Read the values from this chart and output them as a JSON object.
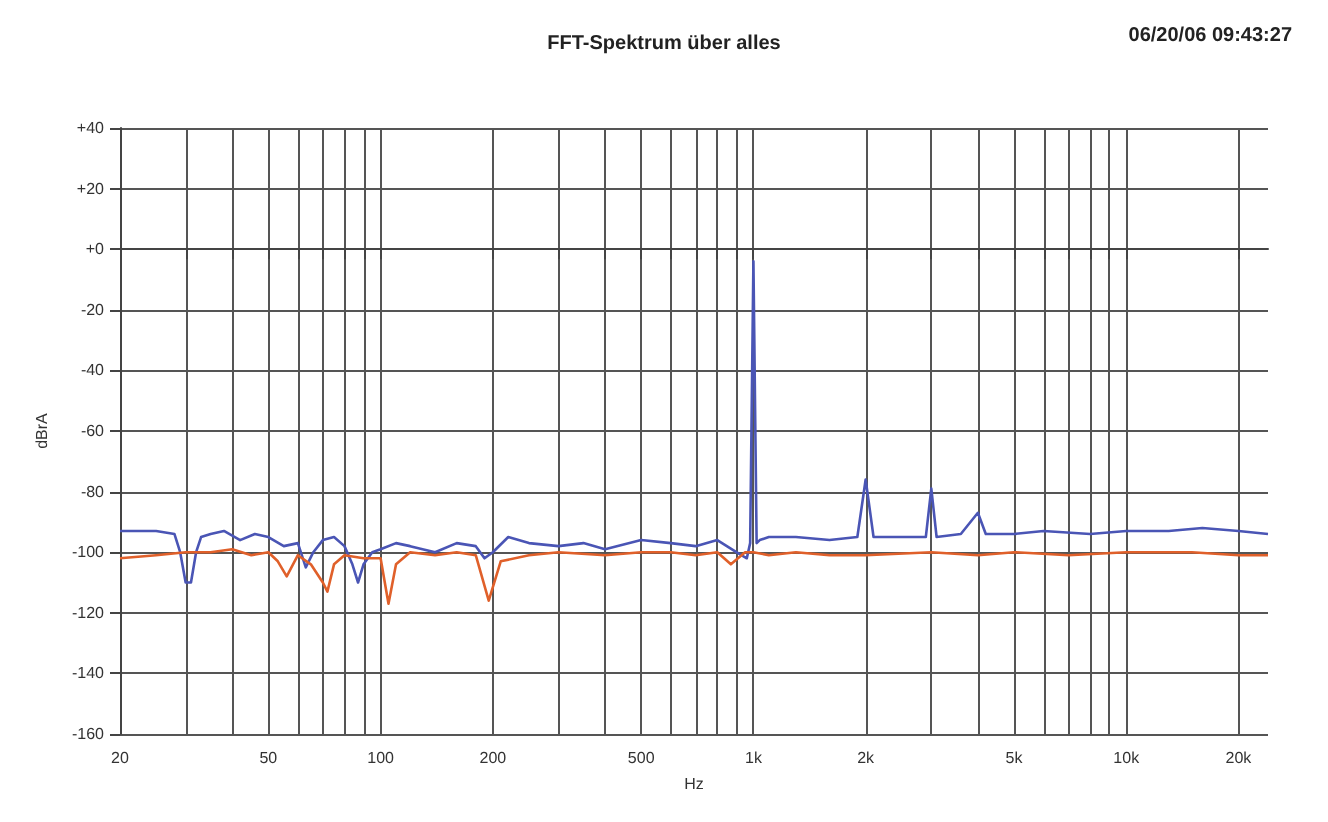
{
  "chart_data": {
    "type": "line",
    "title": "FFT-Spektrum über alles",
    "annotations": [
      "06/20/06 09:43:27"
    ],
    "xlabel": "Hz",
    "ylabel": "dBrA",
    "log": "x",
    "grid": true,
    "marker": "none",
    "line_style": "solid",
    "xlim": [
      20,
      24000
    ],
    "ylim": [
      -160,
      40
    ],
    "xticks": [
      {
        "value": 20,
        "label": "20"
      },
      {
        "value": 30,
        "label": null
      },
      {
        "value": 40,
        "label": null
      },
      {
        "value": 50,
        "label": "50"
      },
      {
        "value": 60,
        "label": null
      },
      {
        "value": 70,
        "label": null
      },
      {
        "value": 80,
        "label": null
      },
      {
        "value": 90,
        "label": null
      },
      {
        "value": 100,
        "label": "100"
      },
      {
        "value": 200,
        "label": "200"
      },
      {
        "value": 300,
        "label": null
      },
      {
        "value": 400,
        "label": null
      },
      {
        "value": 500,
        "label": "500"
      },
      {
        "value": 600,
        "label": null
      },
      {
        "value": 700,
        "label": null
      },
      {
        "value": 800,
        "label": null
      },
      {
        "value": 900,
        "label": null
      },
      {
        "value": 1000,
        "label": "1k"
      },
      {
        "value": 2000,
        "label": "2k"
      },
      {
        "value": 3000,
        "label": null
      },
      {
        "value": 4000,
        "label": null
      },
      {
        "value": 5000,
        "label": "5k"
      },
      {
        "value": 6000,
        "label": null
      },
      {
        "value": 7000,
        "label": null
      },
      {
        "value": 8000,
        "label": null
      },
      {
        "value": 9000,
        "label": null
      },
      {
        "value": 10000,
        "label": "10k"
      },
      {
        "value": 20000,
        "label": "20k"
      }
    ],
    "yticks": [
      {
        "value": 40,
        "label": "+40"
      },
      {
        "value": 20,
        "label": "+20"
      },
      {
        "value": 0,
        "label": "+0"
      },
      -20,
      -40,
      -60,
      -80,
      -100,
      -120,
      -140,
      -160
    ],
    "series": [
      {
        "color": "#4a55b5",
        "x": [
          20,
          22,
          25,
          28,
          29,
          30,
          31,
          32,
          33,
          35,
          38,
          42,
          46,
          50,
          55,
          60,
          63,
          66,
          70,
          75,
          80,
          84,
          87,
          90,
          95,
          100,
          110,
          120,
          140,
          160,
          180,
          190,
          200,
          220,
          250,
          300,
          350,
          400,
          500,
          600,
          700,
          800,
          900,
          960,
          980,
          1000,
          1020,
          1040,
          1100,
          1300,
          1600,
          1900,
          2000,
          2100,
          2500,
          2900,
          3000,
          3100,
          3600,
          4000,
          4200,
          5000,
          6000,
          8000,
          10000,
          13000,
          16000,
          20000,
          24000
        ],
        "values": [
          -93,
          -93,
          -93,
          -94,
          -100,
          -110,
          -110,
          -100,
          -95,
          -94,
          -93,
          -96,
          -94,
          -95,
          -98,
          -97,
          -105,
          -100,
          -96,
          -95,
          -98,
          -104,
          -110,
          -104,
          -100,
          -99,
          -97,
          -98,
          -100,
          -97,
          -98,
          -102,
          -100,
          -95,
          -97,
          -98,
          -97,
          -99,
          -96,
          -97,
          -98,
          -96,
          -100,
          -102,
          -97,
          -4,
          -97,
          -96,
          -95,
          -95,
          -96,
          -95,
          -76,
          -95,
          -95,
          -95,
          -79,
          -95,
          -94,
          -87,
          -94,
          -94,
          -93,
          -94,
          -93,
          -93,
          -92,
          -93,
          -94
        ]
      },
      {
        "color": "#e0602a",
        "x": [
          20,
          25,
          30,
          35,
          40,
          45,
          50,
          53,
          56,
          60,
          65,
          70,
          72,
          75,
          80,
          90,
          100,
          105,
          110,
          120,
          140,
          160,
          180,
          195,
          210,
          250,
          300,
          400,
          500,
          600,
          700,
          800,
          870,
          950,
          1000,
          1100,
          1300,
          1600,
          2000,
          3000,
          4000,
          5000,
          7000,
          10000,
          15000,
          20000,
          24000
        ],
        "values": [
          -102,
          -101,
          -100,
          -100,
          -99,
          -101,
          -100,
          -103,
          -108,
          -101,
          -104,
          -110,
          -113,
          -104,
          -101,
          -102,
          -102,
          -117,
          -104,
          -100,
          -101,
          -100,
          -101,
          -116,
          -103,
          -101,
          -100,
          -101,
          -100,
          -100,
          -101,
          -100,
          -104,
          -100,
          -100,
          -101,
          -100,
          -101,
          -101,
          -100,
          -101,
          -100,
          -101,
          -100,
          -100,
          -101,
          -101
        ]
      }
    ]
  }
}
